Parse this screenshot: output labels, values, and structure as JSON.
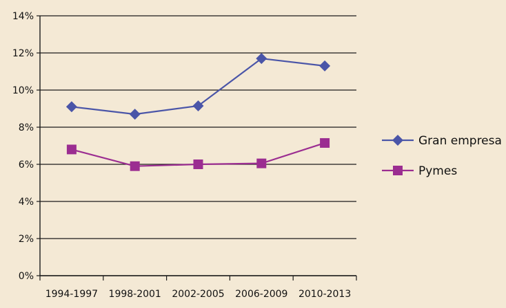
{
  "chart_data": {
    "type": "line",
    "categories": [
      "1994-1997",
      "1998-2001",
      "2002-2005",
      "2006-2009",
      "2010-2013"
    ],
    "y_tick_labels": [
      "0%",
      "2%",
      "4%",
      "6%",
      "8%",
      "10%",
      "12%",
      "14%"
    ],
    "ylim": [
      0,
      14
    ],
    "grid": true,
    "legend_position": "right",
    "series": [
      {
        "name": "Gran empresa",
        "values": [
          9.1,
          8.7,
          9.15,
          11.7,
          11.3
        ],
        "color": "#4a55a8",
        "marker": "diamond"
      },
      {
        "name": "Pymes",
        "values": [
          6.8,
          5.9,
          6.0,
          6.05,
          7.15
        ],
        "color": "#9b2d91",
        "marker": "square"
      }
    ]
  },
  "colors": {
    "background": "#f4e9d5",
    "grid": "#1a1a1a",
    "text": "#111111"
  }
}
